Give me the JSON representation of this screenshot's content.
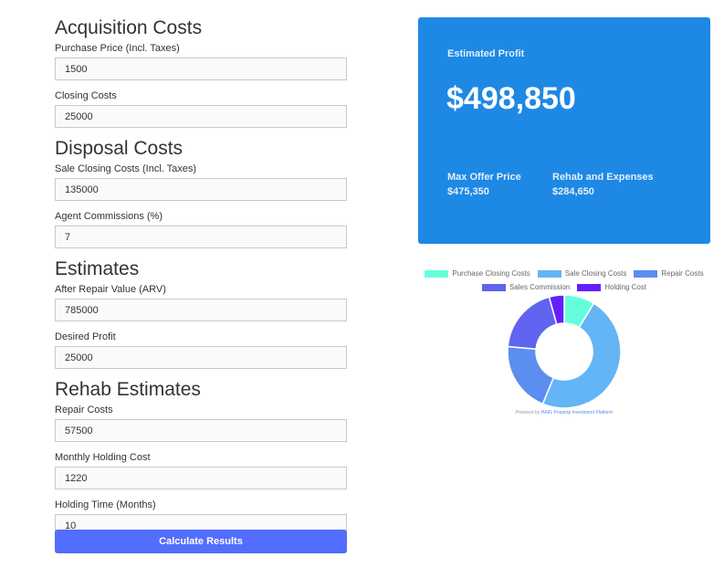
{
  "form": {
    "sections": [
      {
        "title": "Acquisition Costs",
        "fields": [
          {
            "label": "Purchase Price (Incl. Taxes)",
            "value": "1500"
          },
          {
            "label": "Closing Costs",
            "value": "25000"
          }
        ]
      },
      {
        "title": "Disposal Costs",
        "fields": [
          {
            "label": "Sale Closing Costs (Incl. Taxes)",
            "value": "135000"
          },
          {
            "label": "Agent Commissions (%)",
            "value": "7"
          }
        ]
      },
      {
        "title": "Estimates",
        "fields": [
          {
            "label": "After Repair Value (ARV)",
            "value": "785000"
          },
          {
            "label": "Desired Profit",
            "value": "25000"
          }
        ]
      },
      {
        "title": "Rehab Estimates",
        "fields": [
          {
            "label": "Repair Costs",
            "value": "57500"
          },
          {
            "label": "Monthly Holding Cost",
            "value": "1220"
          },
          {
            "label": "Holding Time (Months)",
            "value": "10"
          }
        ]
      }
    ],
    "submit_label": "Calculate Results"
  },
  "results": {
    "estimated_profit_label": "Estimated Profit",
    "estimated_profit_value": "$498,850",
    "max_offer_label": "Max Offer Price",
    "max_offer_value": "$475,350",
    "rehab_label": "Rehab and Expenses",
    "rehab_value": "$284,650",
    "card_color": "#1e88e5"
  },
  "chart_data": {
    "type": "pie",
    "variant": "doughnut",
    "legend_position": "top",
    "categories": [
      "Purchase Closing Costs",
      "Sale Closing Costs",
      "Repair Costs",
      "Sales Commission",
      "Holding Cost"
    ],
    "values": [
      25000,
      135000,
      57500,
      54950,
      12200
    ],
    "colors": [
      "#64ffda",
      "#64b5f6",
      "#5c8df0",
      "#6064f0",
      "#651fff"
    ]
  },
  "footer": {
    "powered_prefix": "Powered by",
    "powered_link": "HAIG Property Investment Platform"
  }
}
